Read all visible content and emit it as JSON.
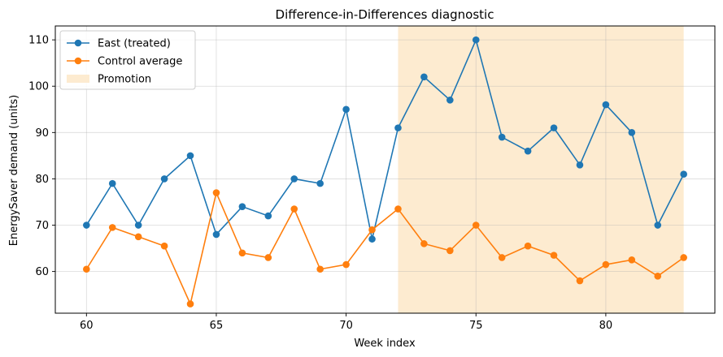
{
  "chart_data": {
    "type": "line",
    "title": "Difference-in-Differences diagnostic",
    "xlabel": "Week index",
    "ylabel": "EnergySaver demand (units)",
    "xlim": [
      58.8,
      84.2
    ],
    "ylim": [
      51,
      113
    ],
    "xticks": [
      60,
      65,
      70,
      75,
      80
    ],
    "yticks": [
      60,
      70,
      80,
      90,
      100,
      110
    ],
    "grid": true,
    "legend": "top-left",
    "x": [
      60,
      61,
      62,
      63,
      64,
      65,
      66,
      67,
      68,
      69,
      70,
      71,
      72,
      73,
      74,
      75,
      76,
      77,
      78,
      79,
      80,
      81,
      82,
      83
    ],
    "series": [
      {
        "name": "East (treated)",
        "color": "#1f77b4",
        "values": [
          70,
          79,
          70,
          80,
          85,
          68,
          74,
          72,
          80,
          79,
          95,
          67,
          91,
          102,
          97,
          110,
          89,
          86,
          91,
          83,
          96,
          90,
          70,
          81
        ]
      },
      {
        "name": "Control average",
        "color": "#ff7f0e",
        "values": [
          60.5,
          69.5,
          67.5,
          65.5,
          53,
          77,
          64,
          63,
          73.5,
          60.5,
          61.5,
          69,
          73.5,
          66,
          64.5,
          70,
          63,
          65.5,
          63.5,
          58,
          61.5,
          62.5,
          59,
          63
        ]
      }
    ],
    "shaded_region": {
      "name": "Promotion",
      "x_start": 72,
      "x_end": 83,
      "color": "#fdebd0"
    }
  }
}
